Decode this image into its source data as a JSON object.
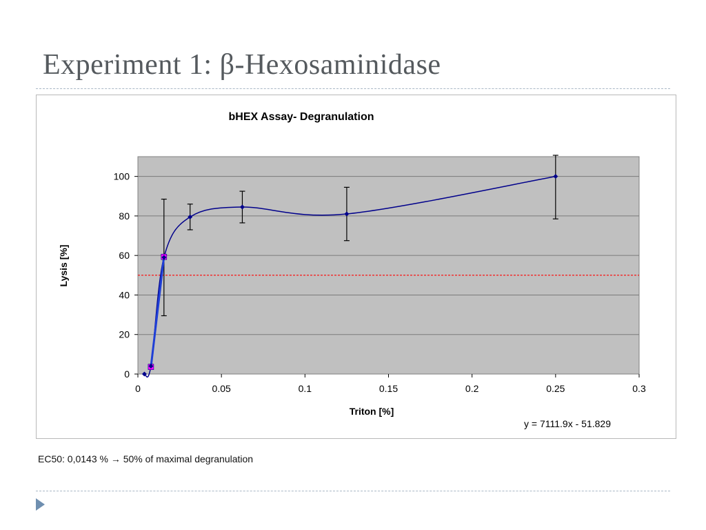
{
  "slide": {
    "title": "Experiment 1: β-Hexosaminidase",
    "footnote": "EC50: 0,0143 % → 50% of maximal degranulation"
  },
  "colors": {
    "title": "#555a5e",
    "plot_background": "#c0c0c0",
    "series_line": "#00008b",
    "highlight_marker": "#ff00ff",
    "threshold_line": "#ff0000",
    "divider": "#a9b7c6",
    "bullet": "#6f8fb0"
  },
  "chart_data": {
    "type": "scatter",
    "title": "bHEX Assay- Degranulation",
    "xlabel": "Triton [%]",
    "ylabel": "Lysis [%]",
    "xlim": [
      0,
      0.3
    ],
    "ylim": [
      0,
      110
    ],
    "xticks": [
      0,
      0.05,
      0.1,
      0.15,
      0.2,
      0.25,
      0.3
    ],
    "xtick_labels": [
      "0",
      "0.05",
      "0.1",
      "0.15",
      "0.2",
      "0.25",
      "0.3"
    ],
    "yticks": [
      0,
      20,
      40,
      60,
      80,
      100
    ],
    "ytick_labels": [
      "0",
      "20",
      "40",
      "60",
      "80",
      "100"
    ],
    "grid": "horizontal",
    "series": [
      {
        "points": [
          {
            "x": 0.0039,
            "y": 0,
            "err": 0
          },
          {
            "x": 0.0078,
            "y": 4,
            "err": 0
          },
          {
            "x": 0.0156,
            "y": 59,
            "err": 29.5
          },
          {
            "x": 0.03125,
            "y": 79.5,
            "err": 6.5
          },
          {
            "x": 0.0625,
            "y": 84.5,
            "err": 8
          },
          {
            "x": 0.125,
            "y": 81,
            "err": 13.5
          },
          {
            "x": 0.25,
            "y": 100,
            "err": 21.5
          }
        ],
        "line": "smoothed"
      },
      {
        "points": [
          {
            "x": 0.0078,
            "y": 3.6
          },
          {
            "x": 0.0156,
            "y": 59.3
          }
        ],
        "line": "linear-fit",
        "marker": "square"
      }
    ],
    "threshold": {
      "y": 50,
      "style": "dashed"
    },
    "annotation": "y = 7111.9x - 51.829"
  }
}
